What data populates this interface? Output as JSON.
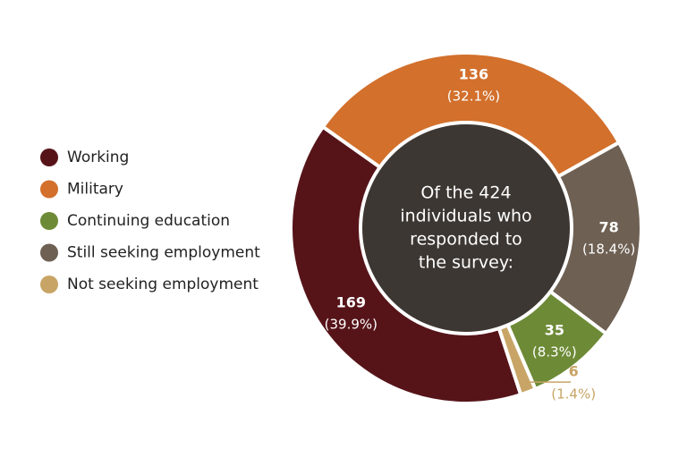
{
  "chart_data": {
    "type": "donut",
    "center_text": [
      "Of the 424",
      "individuals who",
      "responded to",
      "the survey:"
    ],
    "categories": [
      "Working",
      "Military",
      "Continuing education",
      "Still seeking employment",
      "Not seeking employment"
    ],
    "values": [
      169,
      136,
      35,
      78,
      6
    ],
    "percent_labels": [
      "(39.9%)",
      "(32.1%)",
      "(8.3%)",
      "(18.4%)",
      "(1.4%)"
    ],
    "colors": [
      "#561419",
      "#d2702c",
      "#6d8a36",
      "#6e6053",
      "#c8a566"
    ],
    "center_color": "#3d3733",
    "legend": "left"
  }
}
